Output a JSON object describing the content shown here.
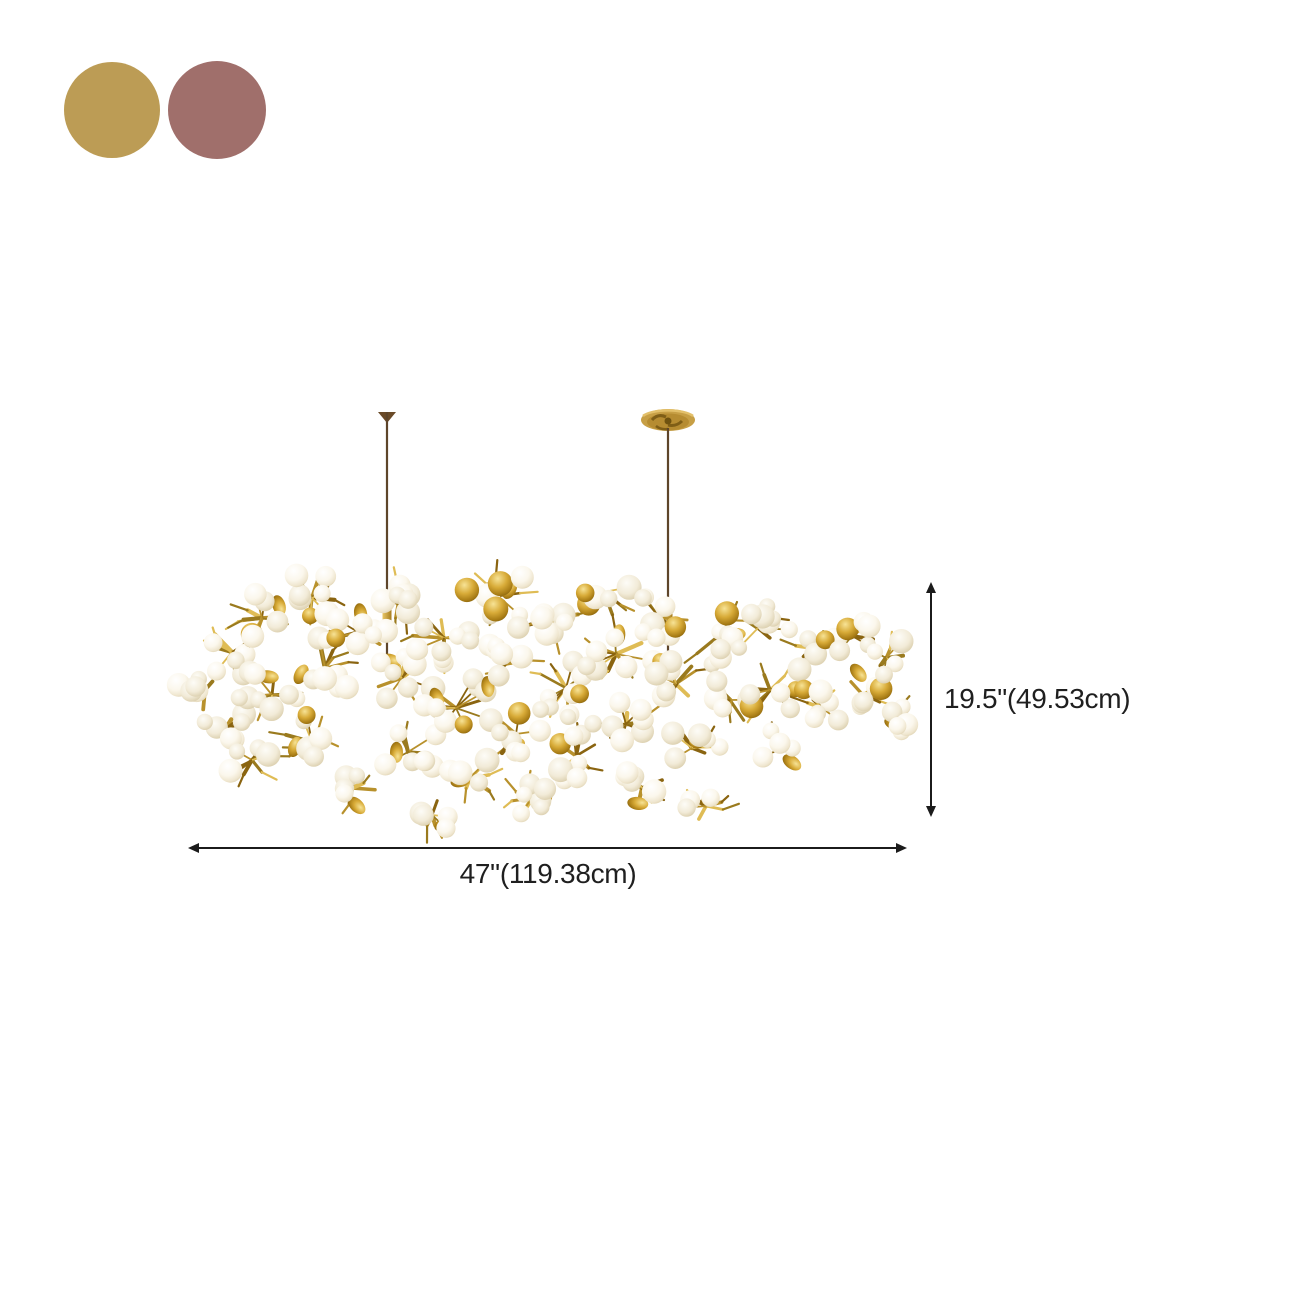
{
  "color_options": [
    {
      "name": "gold",
      "color": "#bc9c55"
    },
    {
      "name": "rose-pink",
      "color": "#a06f6b"
    }
  ],
  "dimensions": {
    "height_label": "19.5\"(49.53cm)",
    "width_label": "47\"(119.38cm)"
  },
  "annotation_color": "#1b1b1b",
  "chandelier": {
    "description": "gold branch chandelier with white glass grape orbs, two hanging rods and a round gold ceiling canopy",
    "orb_white": "#f7f1e3",
    "branch_gold": "#b8912c",
    "branch_gold_dark": "#8a6410",
    "branch_gold_light": "#dfbc55",
    "rod_color": "#5e452a",
    "canopy_gold": "#c79f45"
  }
}
